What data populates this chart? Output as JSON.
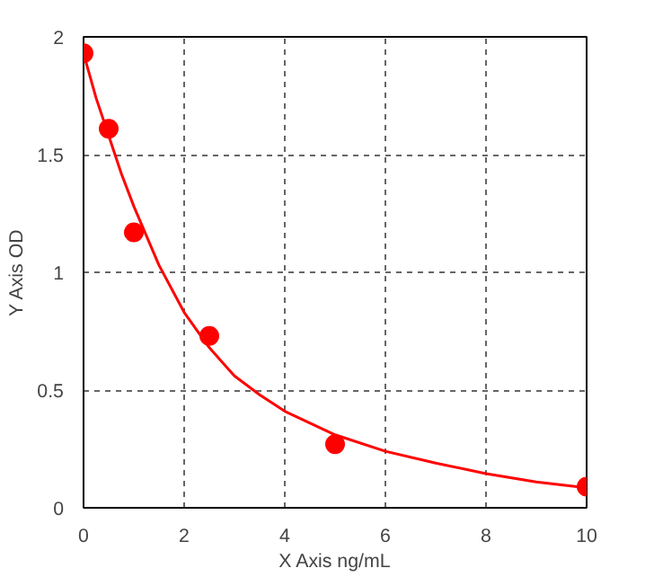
{
  "chart_data": {
    "type": "scatter",
    "xlabel": "X Axis ng/mL",
    "ylabel": "Y Axis OD",
    "xlim": [
      0,
      10
    ],
    "ylim": [
      0,
      2
    ],
    "xticks": [
      0,
      2,
      4,
      6,
      8,
      10
    ],
    "yticks": [
      0,
      {
        "value": 0.5,
        "label": "0.5"
      },
      1,
      {
        "value": 1.5,
        "label": "1.5"
      },
      2
    ],
    "grid": true,
    "marker": "circle",
    "series": [
      {
        "color": "#ff0000",
        "x": [
          0,
          0.5,
          1,
          2.5,
          5,
          10
        ],
        "values": [
          1.93,
          1.61,
          1.17,
          0.73,
          0.27,
          0.09
        ]
      },
      {
        "type": "line",
        "color": "#ff0000",
        "marker": "none",
        "line_style": "solid",
        "x": [
          0,
          0.25,
          0.5,
          0.75,
          1,
          1.5,
          2,
          2.5,
          3,
          3.5,
          4,
          5,
          6,
          7,
          8,
          9,
          10
        ],
        "values": [
          1.93,
          1.74,
          1.58,
          1.42,
          1.28,
          1.03,
          0.83,
          0.68,
          0.56,
          0.48,
          0.41,
          0.31,
          0.24,
          0.19,
          0.145,
          0.11,
          0.085
        ]
      }
    ]
  }
}
